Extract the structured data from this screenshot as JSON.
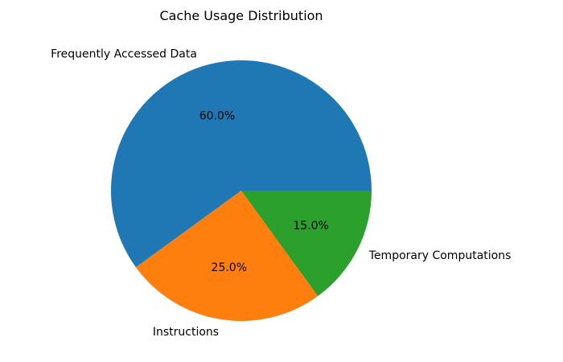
{
  "chart_data": {
    "type": "pie",
    "title": "Cache Usage Distribution",
    "categories": [
      "Frequently Accessed Data",
      "Instructions",
      "Temporary Computations"
    ],
    "values": [
      60.0,
      25.0,
      15.0
    ],
    "percent_labels": [
      "60.0%",
      "25.0%",
      "15.0%"
    ],
    "colors": [
      "#1f77b4",
      "#ff7f0e",
      "#2ca02c"
    ],
    "start_angle_deg": 0,
    "direction": "counterclockwise"
  }
}
